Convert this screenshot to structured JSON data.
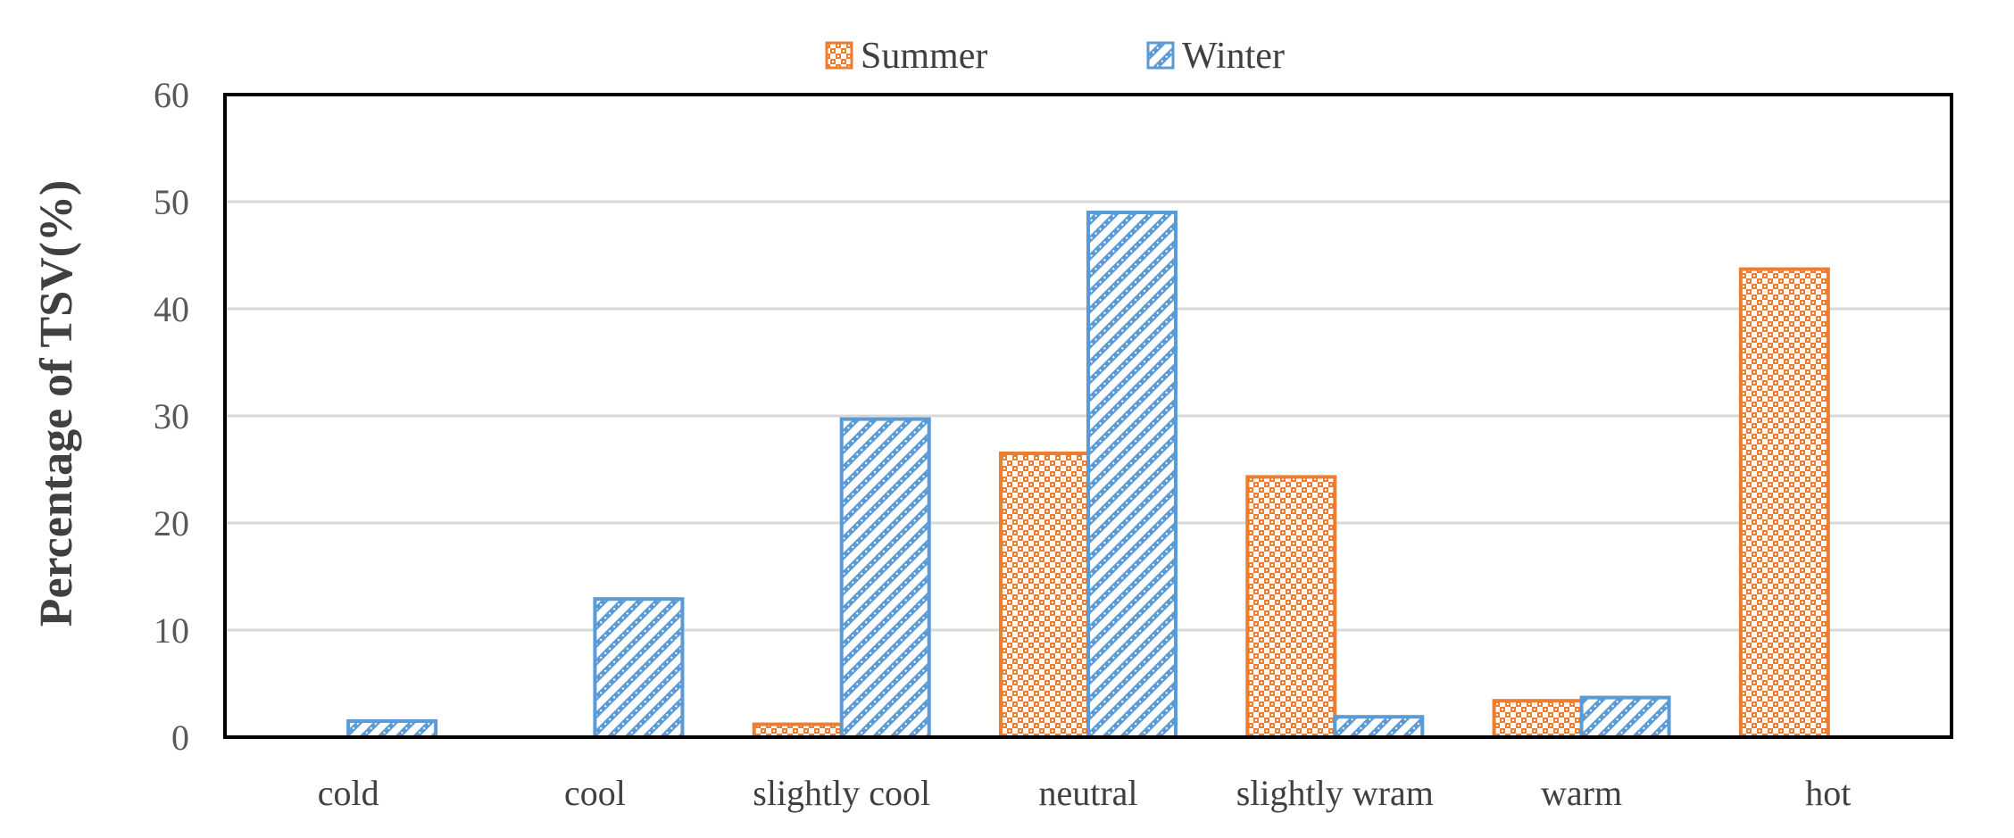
{
  "chart_data": {
    "type": "bar",
    "title": "",
    "xlabel": "",
    "ylabel": "Percentage of TSV(%)",
    "categories": [
      "cold",
      "cool",
      "slightly cool",
      "neutral",
      "slightly wram",
      "warm",
      "hot"
    ],
    "series": [
      {
        "name": "Summer",
        "color": "#ED7D31",
        "pattern": "checker",
        "values": [
          0,
          0,
          1.2,
          26.5,
          24.3,
          3.4,
          43.7
        ]
      },
      {
        "name": "Winter",
        "color": "#5B9BD5",
        "pattern": "diagonal",
        "values": [
          1.5,
          12.9,
          29.7,
          49.0,
          1.9,
          3.7,
          0
        ]
      }
    ],
    "ylim": [
      0,
      60
    ],
    "yticks": [
      0,
      10,
      20,
      30,
      40,
      50,
      60
    ],
    "grid": true,
    "legend": "top-center"
  }
}
